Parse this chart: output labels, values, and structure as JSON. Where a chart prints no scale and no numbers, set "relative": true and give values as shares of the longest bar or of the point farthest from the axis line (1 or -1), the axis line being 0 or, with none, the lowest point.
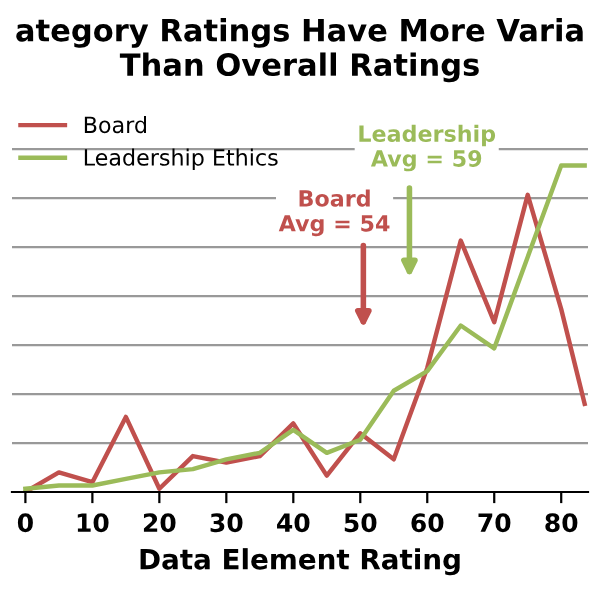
{
  "chart_data": {
    "type": "line",
    "title": "ategory Ratings Have More Varia\nThan Overall Ratings",
    "xlabel": "Data Element Rating",
    "x": [
      0,
      5,
      10,
      15,
      20,
      25,
      30,
      35,
      40,
      45,
      50,
      55,
      60,
      65,
      70,
      75,
      80,
      83.5
    ],
    "relative": true,
    "series": [
      {
        "name": "Board",
        "color": "#c0504d",
        "values": [
          0.0,
          0.06,
          0.03,
          0.23,
          0.01,
          0.11,
          0.09,
          0.11,
          0.21,
          0.05,
          0.18,
          0.1,
          0.38,
          0.77,
          0.52,
          0.91,
          0.56,
          0.27
        ]
      },
      {
        "name": "Leadership Ethics",
        "color": "#9bbb59",
        "values": [
          0.01,
          0.02,
          0.02,
          0.04,
          0.06,
          0.07,
          0.1,
          0.12,
          0.19,
          0.12,
          0.16,
          0.31,
          0.37,
          0.51,
          0.44,
          0.72,
          1.0,
          1.0
        ]
      }
    ],
    "xlim": [
      -2,
      84
    ],
    "xticks": [
      0,
      10,
      20,
      30,
      40,
      50,
      60,
      70,
      80
    ],
    "annotations": [
      "Board\nAvg = 54",
      "Leadership\nAvg = 59"
    ],
    "grid": "y",
    "legend": "top left",
    "marker": "none",
    "line_style": "solid"
  }
}
